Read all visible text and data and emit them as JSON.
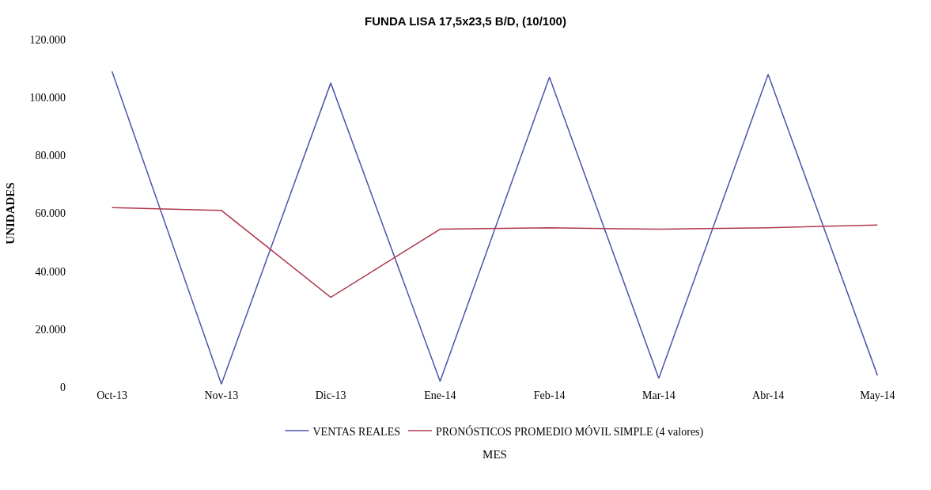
{
  "chart_data": {
    "type": "line",
    "title": "FUNDA LISA 17,5x23,5 B/D, (10/100)",
    "xlabel": "MES",
    "ylabel": "UNIDADES",
    "categories": [
      "Oct-13",
      "Nov-13",
      "Dic-13",
      "Ene-14",
      "Feb-14",
      "Mar-14",
      "Abr-14",
      "May-14"
    ],
    "series": [
      {
        "name": "VENTAS REALES",
        "color": "#4a55a8",
        "values": [
          109000,
          1000,
          105000,
          2000,
          107000,
          3000,
          108000,
          4000
        ]
      },
      {
        "name": "PRONÓSTICOS PROMEDIO MÓVIL SIMPLE (4 valores)",
        "color": "#b03a4e",
        "values": [
          62000,
          61000,
          31000,
          54500,
          55000,
          54500,
          55000,
          56000
        ]
      }
    ],
    "ylim": [
      0,
      120000
    ],
    "yticks": [
      {
        "value": 0,
        "label": "0"
      },
      {
        "value": 20000,
        "label": "20.000"
      },
      {
        "value": 40000,
        "label": "40.000"
      },
      {
        "value": 60000,
        "label": "60.000"
      },
      {
        "value": 80000,
        "label": "80.000"
      },
      {
        "value": 100000,
        "label": "100.000"
      },
      {
        "value": 120000,
        "label": "120.000"
      }
    ],
    "legend": "bottom",
    "marker": "none",
    "line_style": "solid"
  }
}
